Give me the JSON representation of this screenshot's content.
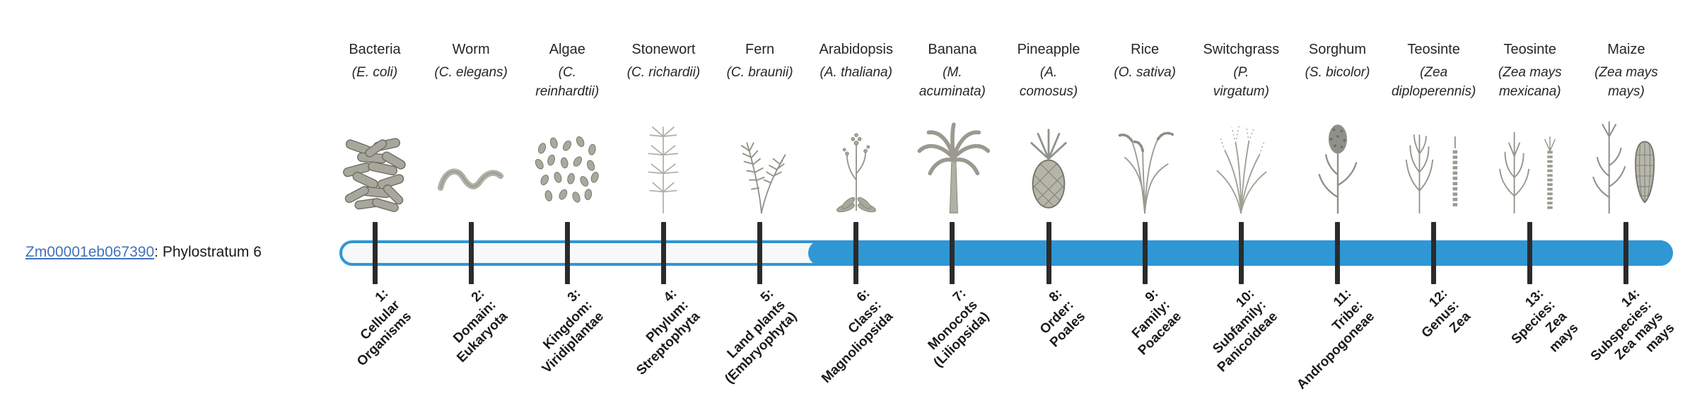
{
  "colors": {
    "bar_fill": "#2f97d4",
    "bar_track": "#f6f8fa",
    "tick": "#2b2b2b",
    "link": "#4273b8",
    "text": "#262626"
  },
  "gene": {
    "id": "Zm00001eb067390",
    "suffix": ": Phylostratum 6",
    "phylostratum": 6
  },
  "bar": {
    "filled_from_stratum": 6
  },
  "chart_data": {
    "type": "table",
    "title": "Zm00001eb067390: Phylostratum 6",
    "strata": [
      {
        "stratum": 1,
        "taxon": "Bacteria",
        "species": "(E. coli)",
        "rank_label": "1: Cellular Organisms",
        "filled": false
      },
      {
        "stratum": 2,
        "taxon": "Worm",
        "species": "(C. elegans)",
        "rank_label": "2: Domain: Eukaryota",
        "filled": false
      },
      {
        "stratum": 3,
        "taxon": "Algae",
        "species": "(C. reinhardtii)",
        "rank_label": "3: Kingdom: Viridiplantae",
        "filled": false
      },
      {
        "stratum": 4,
        "taxon": "Stonewort",
        "species": "(C. richardii)",
        "rank_label": "4: Phylum: Streptophyta",
        "filled": false
      },
      {
        "stratum": 5,
        "taxon": "Fern",
        "species": "(C. braunii)",
        "rank_label": "5: Land plants (Embryophyta)",
        "filled": false
      },
      {
        "stratum": 6,
        "taxon": "Arabidopsis",
        "species": "(A. thaliana)",
        "rank_label": "6: Class: Magnoliopsida",
        "filled": true
      },
      {
        "stratum": 7,
        "taxon": "Banana",
        "species": "(M. acuminata)",
        "rank_label": "7: Monocots (Liliopsida)",
        "filled": true
      },
      {
        "stratum": 8,
        "taxon": "Pineapple",
        "species": "(A. comosus)",
        "rank_label": "8: Order: Poales",
        "filled": true
      },
      {
        "stratum": 9,
        "taxon": "Rice",
        "species": "(O. sativa)",
        "rank_label": "9: Family: Poaceae",
        "filled": true
      },
      {
        "stratum": 10,
        "taxon": "Switchgrass",
        "species": "(P. virgatum)",
        "rank_label": "10: Subfamily: Panicoideae",
        "filled": true
      },
      {
        "stratum": 11,
        "taxon": "Sorghum",
        "species": "(S. bicolor)",
        "rank_label": "11: Tribe: Andropogoneae",
        "filled": true
      },
      {
        "stratum": 12,
        "taxon": "Teosinte",
        "species": "(Zea diploperennis)",
        "rank_label": "12: Genus: Zea",
        "filled": true
      },
      {
        "stratum": 13,
        "taxon": "Teosinte",
        "species": "(Zea mays mexicana)",
        "rank_label": "13: Species: Zea mays",
        "filled": true
      },
      {
        "stratum": 14,
        "taxon": "Maize",
        "species": "(Zea mays mays)",
        "rank_label": "14: Subspecies: Zea mays mays",
        "filled": true
      }
    ]
  },
  "taxa": [
    {
      "stratum": 1,
      "name": "Bacteria",
      "sci": "(E. coli)",
      "icon": "bacteria",
      "stratum_label": "1:\nCellular\nOrganisms"
    },
    {
      "stratum": 2,
      "name": "Worm",
      "sci": "(C. elegans)",
      "icon": "worm",
      "stratum_label": "2:\nDomain:\nEukaryota"
    },
    {
      "stratum": 3,
      "name": "Algae",
      "sci": "(C.\nreinhardtii)",
      "icon": "algae",
      "stratum_label": "3:\nKingdom:\nViridiplantae"
    },
    {
      "stratum": 4,
      "name": "Stonewort",
      "sci": "(C. richardii)",
      "icon": "stonewort",
      "stratum_label": "4:\nPhylum:\nStreptophyta"
    },
    {
      "stratum": 5,
      "name": "Fern",
      "sci": "(C. braunii)",
      "icon": "fern",
      "stratum_label": "5:\nLand plants\n(Embryophyta)"
    },
    {
      "stratum": 6,
      "name": "Arabidopsis",
      "sci": "(A. thaliana)",
      "icon": "arabidopsis",
      "stratum_label": "6:\nClass:\nMagnoliopsida"
    },
    {
      "stratum": 7,
      "name": "Banana",
      "sci": "(M.\nacuminata)",
      "icon": "banana",
      "stratum_label": "7:\nMonocots\n(Liliopsida)"
    },
    {
      "stratum": 8,
      "name": "Pineapple",
      "sci": "(A.\ncomosus)",
      "icon": "pineapple",
      "stratum_label": "8:\nOrder:\nPoales"
    },
    {
      "stratum": 9,
      "name": "Rice",
      "sci": "(O. sativa)",
      "icon": "rice",
      "stratum_label": "9:\nFamily:\nPoaceae"
    },
    {
      "stratum": 10,
      "name": "Switchgrass",
      "sci": "(P.\nvirgatum)",
      "icon": "switchgrass",
      "stratum_label": "10:\nSubfamily:\nPanicoideae"
    },
    {
      "stratum": 11,
      "name": "Sorghum",
      "sci": "(S. bicolor)",
      "icon": "sorghum",
      "stratum_label": "11:\nTribe:\nAndropogoneae"
    },
    {
      "stratum": 12,
      "name": "Teosinte",
      "sci": "(Zea\ndiploperennis)",
      "icon": "teosinte-diplo",
      "stratum_label": "12:\nGenus:\nZea"
    },
    {
      "stratum": 13,
      "name": "Teosinte",
      "sci": "(Zea mays\nmexicana)",
      "icon": "teosinte-mex",
      "stratum_label": "13:\nSpecies:\nZea\nmays"
    },
    {
      "stratum": 14,
      "name": "Maize",
      "sci": "(Zea mays\nmays)",
      "icon": "maize",
      "stratum_label": "14:\nSubspecies:\nZea mays\nmays"
    }
  ]
}
